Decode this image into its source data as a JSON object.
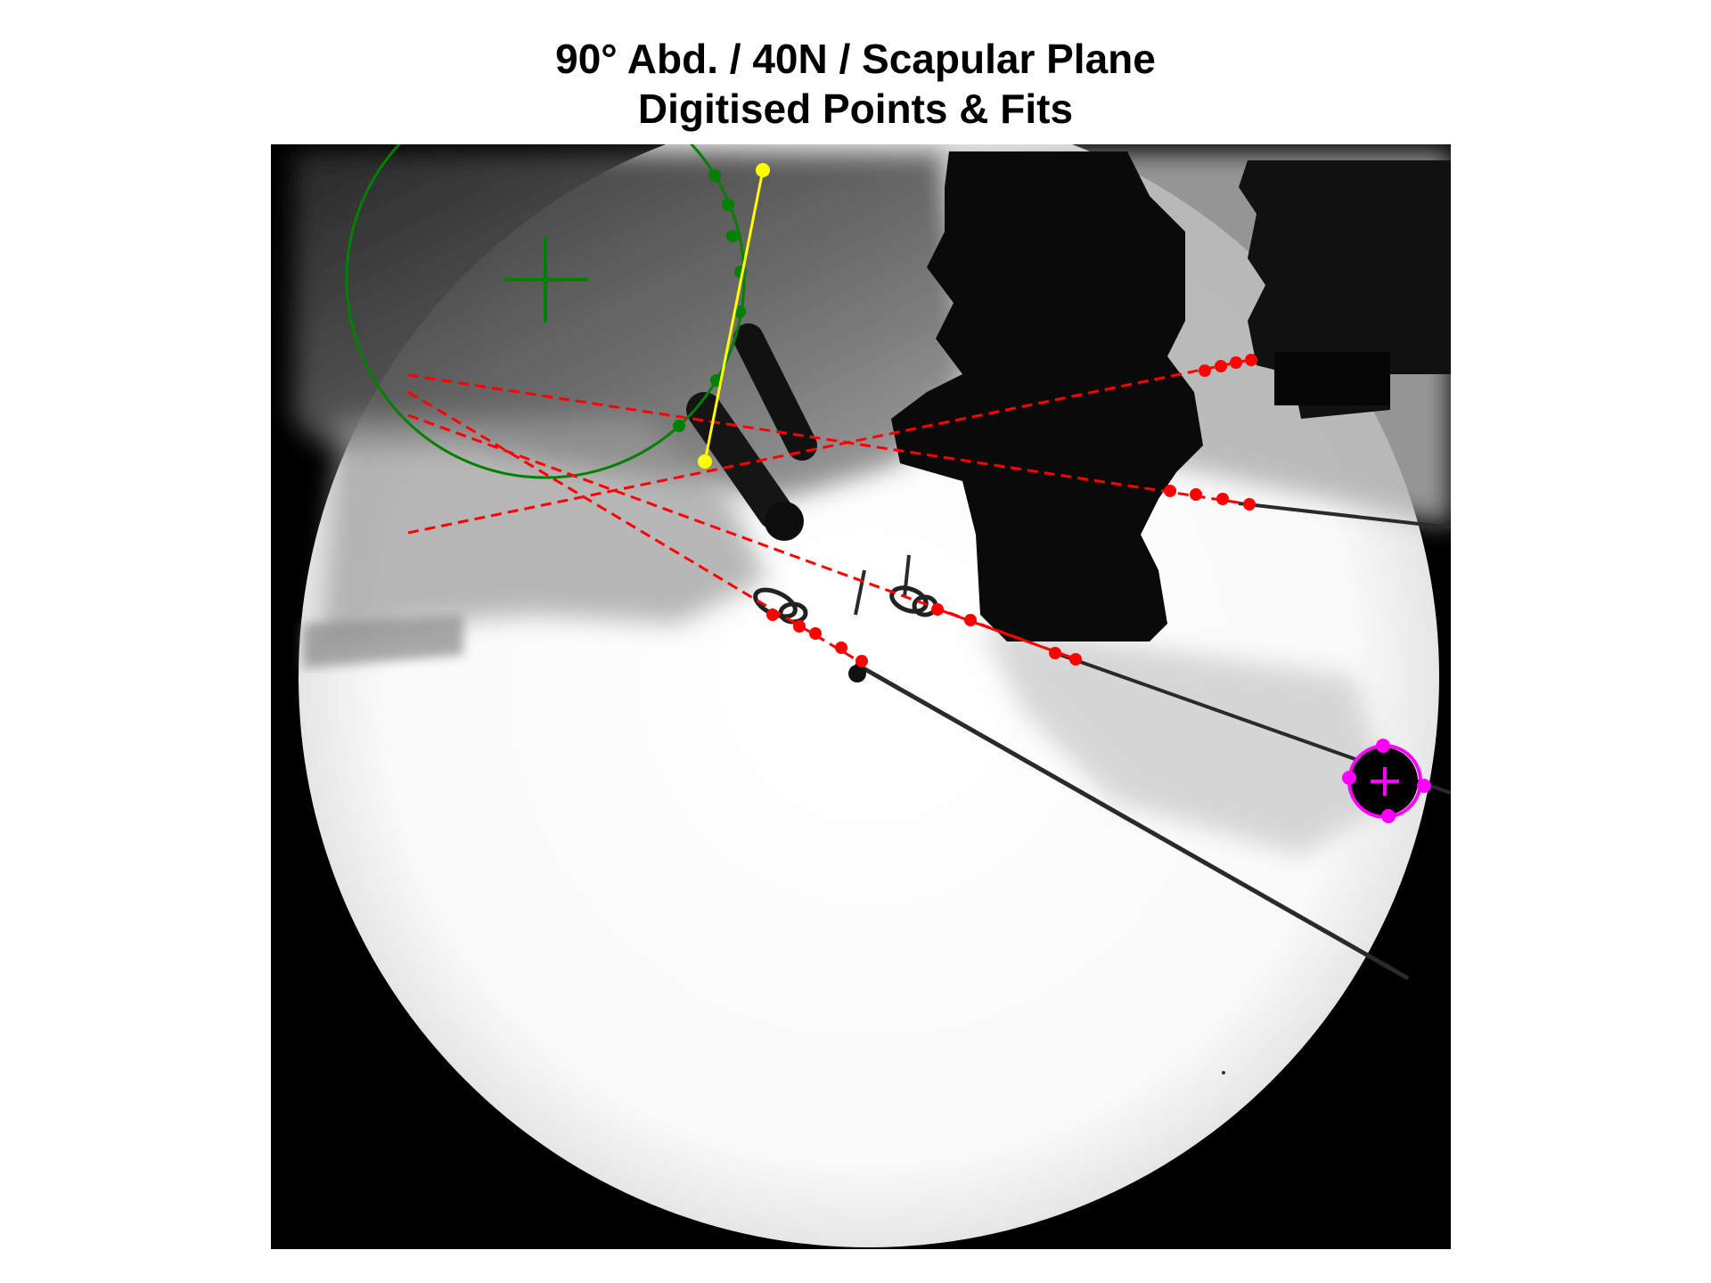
{
  "title": {
    "line1": "90° Abd. / 40N / Scapular Plane",
    "line2": "Digitised Points & Fits"
  },
  "colors": {
    "humeral_head_fit": "#008000",
    "glenoid_line": "#ffff00",
    "axis_fits": "#ff0000",
    "marker_fit": "#ff00ff",
    "background": "#ffffff",
    "image_frame": "#000000"
  },
  "overlays": {
    "humeral_head_circle": {
      "color_name": "green",
      "style": "solid circle with centre cross and digitised points"
    },
    "glenoid_line": {
      "color_name": "yellow",
      "style": "solid line between two digitised points"
    },
    "axis_lines": {
      "color_name": "red",
      "count": 4,
      "style": "dashed fitted lines through digitised points"
    },
    "calibration_marker": {
      "color_name": "magenta",
      "style": "circle with centre cross and four digitised points"
    }
  }
}
